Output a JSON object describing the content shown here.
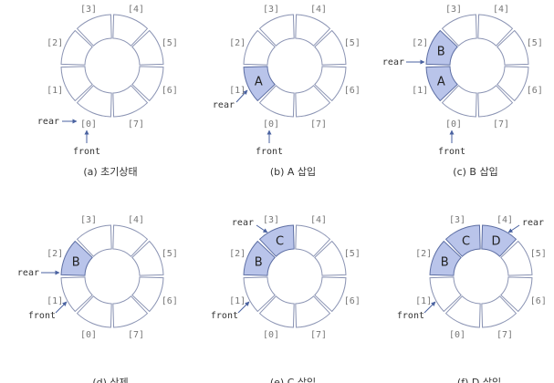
{
  "colors": {
    "ring_stroke": "#8a93b3",
    "filled": "#b9c4ea",
    "filled_stroke": "#5d6ea3",
    "arrow": "#4a62a0"
  },
  "slot_labels": [
    "[0]",
    "[1]",
    "[2]",
    "[3]",
    "[4]",
    "[5]",
    "[6]",
    "[7]"
  ],
  "pointer_labels": {
    "rear": "rear",
    "front": "front"
  },
  "panels": [
    {
      "caption": "(a) 초기상태",
      "contents": {},
      "rear": 0,
      "front": 0
    },
    {
      "caption": "(b) A 삽입",
      "contents": {
        "1": "A"
      },
      "rear": 1,
      "front": 0
    },
    {
      "caption": "(c) B 삽입",
      "contents": {
        "1": "A",
        "2": "B"
      },
      "rear": 2,
      "front": 0
    },
    {
      "caption": "(d) 삭제",
      "contents": {
        "2": "B"
      },
      "rear": 2,
      "front": 1
    },
    {
      "caption": "(e) C 삽입",
      "contents": {
        "2": "B",
        "3": "C"
      },
      "rear": 3,
      "front": 1
    },
    {
      "caption": "(f) D 삽입",
      "contents": {
        "2": "B",
        "3": "C",
        "4": "D"
      },
      "rear": 4,
      "front": 1
    }
  ]
}
